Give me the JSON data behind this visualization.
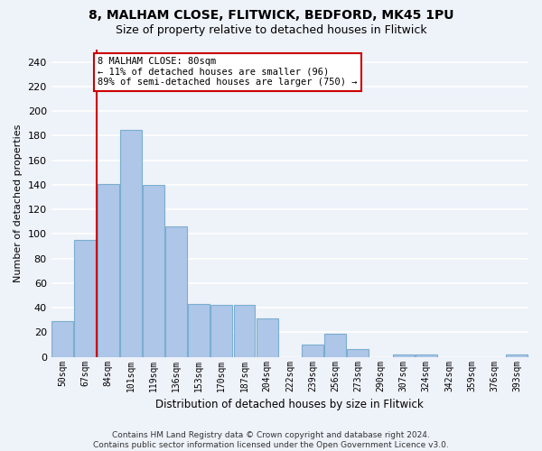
{
  "title1": "8, MALHAM CLOSE, FLITWICK, BEDFORD, MK45 1PU",
  "title2": "Size of property relative to detached houses in Flitwick",
  "xlabel": "Distribution of detached houses by size in Flitwick",
  "ylabel": "Number of detached properties",
  "footer1": "Contains HM Land Registry data © Crown copyright and database right 2024.",
  "footer2": "Contains public sector information licensed under the Open Government Licence v3.0.",
  "categories": [
    "50sqm",
    "67sqm",
    "84sqm",
    "101sqm",
    "119sqm",
    "136sqm",
    "153sqm",
    "170sqm",
    "187sqm",
    "204sqm",
    "222sqm",
    "239sqm",
    "256sqm",
    "273sqm",
    "290sqm",
    "307sqm",
    "324sqm",
    "342sqm",
    "359sqm",
    "376sqm",
    "393sqm"
  ],
  "values": [
    29,
    95,
    141,
    185,
    140,
    106,
    43,
    42,
    42,
    31,
    0,
    10,
    19,
    6,
    0,
    2,
    2,
    0,
    0,
    0,
    2
  ],
  "bar_color": "#aec6e8",
  "bar_edgecolor": "#7aaed0",
  "vline_x": 2,
  "annotation_text1": "8 MALHAM CLOSE: 80sqm",
  "annotation_text2": "← 11% of detached houses are smaller (96)",
  "annotation_text3": "89% of semi-detached houses are larger (750) →",
  "ylim": [
    0,
    250
  ],
  "yticks": [
    0,
    20,
    40,
    60,
    80,
    100,
    120,
    140,
    160,
    180,
    200,
    220,
    240
  ],
  "bg_color": "#eef2f9",
  "plot_bg": "#eef2f9",
  "grid_color": "#ffffff",
  "vline_color": "#cc0000",
  "annotation_box_edgecolor": "#cc0000",
  "title_fontsize": 10,
  "subtitle_fontsize": 9,
  "footer_fontsize": 6.5
}
